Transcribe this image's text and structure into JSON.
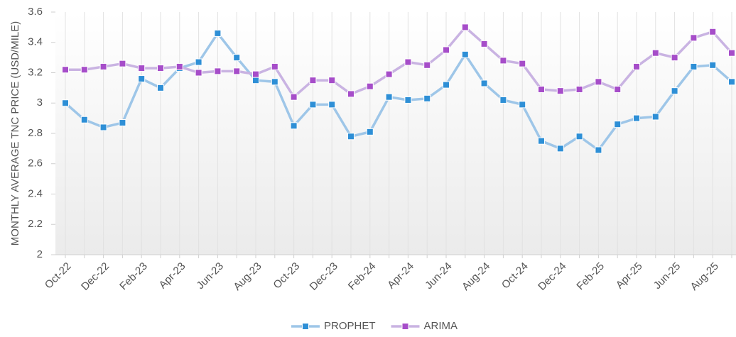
{
  "chart_data": {
    "type": "line",
    "y_label": "MONTHLY AVERAGE TNC PRICE (USD/MILE)",
    "categories": [
      "Oct-22",
      null,
      "Dec-22",
      null,
      "Feb-23",
      null,
      "Apr-23",
      null,
      "Jun-23",
      null,
      "Aug-23",
      null,
      "Oct-23",
      null,
      "Dec-23",
      null,
      "Feb-24",
      null,
      "Apr-24",
      null,
      "Jun-24",
      null,
      "Aug-24",
      null,
      "Oct-24",
      null,
      "Dec-24",
      null,
      "Feb-25",
      null,
      "Apr-25",
      null,
      "Jun-25",
      null,
      "Aug-25",
      null
    ],
    "series": [
      {
        "name": "PROPHET",
        "color": "#2e8fd6",
        "line_color": "#9ec6e8",
        "values": [
          3.0,
          2.89,
          2.84,
          2.87,
          3.16,
          3.1,
          3.23,
          3.27,
          3.46,
          3.3,
          3.15,
          3.14,
          2.85,
          2.99,
          2.99,
          2.78,
          2.81,
          3.04,
          3.02,
          3.03,
          3.12,
          3.32,
          3.13,
          3.02,
          2.99,
          2.75,
          2.7,
          2.78,
          2.69,
          2.86,
          2.9,
          2.91,
          3.08,
          3.24,
          3.25,
          3.14
        ]
      },
      {
        "name": "ARIMA",
        "color": "#a64dc9",
        "line_color": "#c9b3e2",
        "values": [
          3.22,
          3.22,
          3.24,
          3.26,
          3.23,
          3.23,
          3.24,
          3.2,
          3.21,
          3.21,
          3.19,
          3.24,
          3.04,
          3.15,
          3.15,
          3.06,
          3.11,
          3.19,
          3.27,
          3.25,
          3.35,
          3.5,
          3.39,
          3.28,
          3.26,
          3.09,
          3.08,
          3.09,
          3.14,
          3.09,
          3.24,
          3.33,
          3.3,
          3.43,
          3.47,
          3.33
        ]
      }
    ],
    "ylim": [
      2,
      3.6
    ],
    "yticks": [
      2,
      2.2,
      2.4,
      2.6,
      2.8,
      3,
      3.2,
      3.4,
      3.6
    ],
    "grid": false,
    "legend": "bottom"
  }
}
